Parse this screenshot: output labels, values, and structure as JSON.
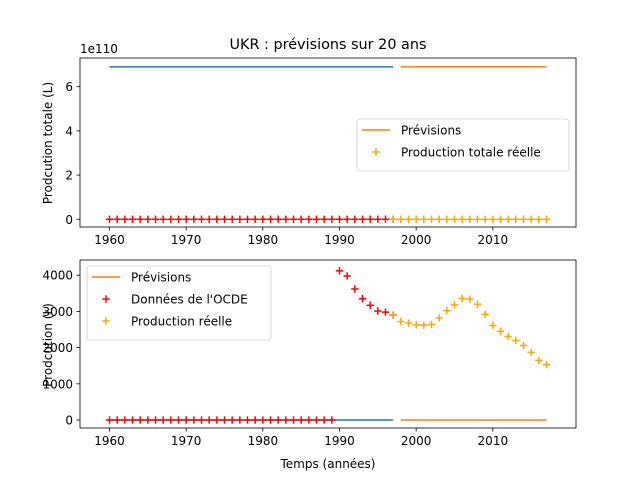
{
  "chart_data": [
    {
      "type": "line",
      "title": "UKR : prévisions sur 20 ans",
      "xlabel": "",
      "ylabel": "Prodcution totale (L)",
      "offset_text": "1e110",
      "xlim": [
        1956.15,
        2020.85
      ],
      "ylim": [
        -0.35,
        7.3
      ],
      "xticks": [
        1960,
        1970,
        1980,
        1990,
        2000,
        2010
      ],
      "yticks": [
        0,
        2,
        4,
        6
      ],
      "legend_position": "center-right",
      "series": [
        {
          "name": "",
          "kind": "line",
          "color": "#1f77b4",
          "x": [
            1960,
            1997
          ],
          "y": [
            6.9,
            6.9
          ]
        },
        {
          "name": "Prévisions",
          "kind": "line",
          "color": "#ff7f0e",
          "x": [
            1998,
            2017
          ],
          "y": [
            6.9,
            6.9
          ]
        },
        {
          "name": "",
          "kind": "scatter",
          "marker": "+",
          "color": "#ff0000",
          "x": [
            1960,
            1961,
            1962,
            1963,
            1964,
            1965,
            1966,
            1967,
            1968,
            1969,
            1970,
            1971,
            1972,
            1973,
            1974,
            1975,
            1976,
            1977,
            1978,
            1979,
            1980,
            1981,
            1982,
            1983,
            1984,
            1985,
            1986,
            1987,
            1988,
            1989,
            1990,
            1991,
            1992,
            1993,
            1994,
            1995,
            1996,
            1997
          ],
          "y": [
            0,
            0,
            0,
            0,
            0,
            0,
            0,
            0,
            0,
            0,
            0,
            0,
            0,
            0,
            0,
            0,
            0,
            0,
            0,
            0,
            0,
            0,
            0,
            0,
            0,
            0,
            0,
            0,
            0,
            0,
            0,
            0,
            0,
            0,
            0,
            0,
            0,
            0
          ]
        },
        {
          "name": "Production totale réelle",
          "kind": "scatter",
          "marker": "+",
          "color": "#ffa500",
          "x": [
            1997,
            1998,
            1999,
            2000,
            2001,
            2002,
            2003,
            2004,
            2005,
            2006,
            2007,
            2008,
            2009,
            2010,
            2011,
            2012,
            2013,
            2014,
            2015,
            2016,
            2017
          ],
          "y": [
            0,
            0,
            0,
            0,
            0,
            0,
            0,
            0,
            0,
            0,
            0,
            0,
            0,
            0,
            0,
            0,
            0,
            0,
            0,
            0,
            0
          ]
        }
      ]
    },
    {
      "type": "line",
      "title": "",
      "xlabel": "Temps (années)",
      "ylabel": "Prodcution (L)",
      "xlim": [
        1956.15,
        2020.85
      ],
      "ylim": [
        -220,
        4420
      ],
      "xticks": [
        1960,
        1970,
        1980,
        1990,
        2000,
        2010
      ],
      "yticks": [
        0,
        1000,
        2000,
        3000,
        4000
      ],
      "legend_position": "top-left",
      "series": [
        {
          "name": "",
          "kind": "line",
          "color": "#1f77b4",
          "x": [
            1960,
            1997
          ],
          "y": [
            0,
            0
          ]
        },
        {
          "name": "Prévisions",
          "kind": "line",
          "color": "#ff7f0e",
          "x": [
            1998,
            2017
          ],
          "y": [
            0,
            0
          ]
        },
        {
          "name": "Données de l'OCDE",
          "kind": "scatter",
          "marker": "+",
          "color": "#ff0000",
          "x": [
            1960,
            1961,
            1962,
            1963,
            1964,
            1965,
            1966,
            1967,
            1968,
            1969,
            1970,
            1971,
            1972,
            1973,
            1974,
            1975,
            1976,
            1977,
            1978,
            1979,
            1980,
            1981,
            1982,
            1983,
            1984,
            1985,
            1986,
            1987,
            1988,
            1989,
            1990,
            1991,
            1992,
            1993,
            1994,
            1995,
            1996,
            1997
          ],
          "y": [
            0,
            0,
            0,
            0,
            0,
            0,
            0,
            0,
            0,
            0,
            0,
            0,
            0,
            0,
            0,
            0,
            0,
            0,
            0,
            0,
            0,
            0,
            0,
            0,
            0,
            0,
            0,
            0,
            0,
            0,
            4120,
            3980,
            3620,
            3350,
            3170,
            3010,
            2980,
            2900
          ]
        },
        {
          "name": "Production réelle",
          "kind": "scatter",
          "marker": "+",
          "color": "#ffa500",
          "x": [
            1997,
            1998,
            1999,
            2000,
            2001,
            2002,
            2003,
            2004,
            2005,
            2006,
            2007,
            2008,
            2009,
            2010,
            2011,
            2012,
            2013,
            2014,
            2015,
            2016,
            2017
          ],
          "y": [
            2900,
            2720,
            2680,
            2630,
            2620,
            2640,
            2820,
            3020,
            3180,
            3360,
            3340,
            3200,
            2920,
            2610,
            2450,
            2310,
            2200,
            2060,
            1870,
            1650,
            1530
          ]
        }
      ]
    }
  ]
}
